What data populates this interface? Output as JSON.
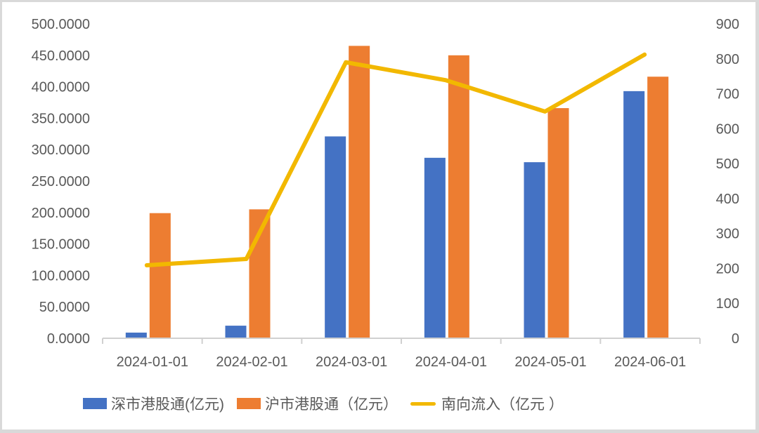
{
  "chart_data": {
    "type": "bar",
    "title": "",
    "categories": [
      "2024-01-01",
      "2024-02-01",
      "2024-03-01",
      "2024-04-01",
      "2024-05-01",
      "2024-06-01"
    ],
    "series": [
      {
        "name": "深市港股通(亿元)",
        "type": "bar",
        "axis": "left",
        "color": "#4472c4",
        "values": [
          9,
          20,
          321,
          287,
          280,
          393
        ]
      },
      {
        "name": "沪市港股通（亿元）",
        "type": "bar",
        "axis": "left",
        "color": "#ed7d31",
        "values": [
          199,
          205,
          465,
          450,
          366,
          416
        ]
      },
      {
        "name": "南向流入（亿元 ）",
        "type": "line",
        "axis": "right",
        "color": "#f2b800",
        "values": [
          209,
          227,
          790,
          739,
          649,
          812
        ]
      }
    ],
    "left_axis": {
      "ticks": [
        "0.0000",
        "50.0000",
        "100.0000",
        "150.0000",
        "200.0000",
        "250.0000",
        "300.0000",
        "350.0000",
        "400.0000",
        "450.0000",
        "500.0000"
      ],
      "ylim": [
        0,
        500
      ]
    },
    "right_axis": {
      "ticks": [
        "0",
        "100",
        "200",
        "300",
        "400",
        "500",
        "600",
        "700",
        "800",
        "900"
      ],
      "ylim": [
        0,
        900
      ]
    },
    "xlabel": "",
    "ylabel": "",
    "grid": false,
    "legend_position": "bottom"
  },
  "legend": {
    "items": [
      {
        "label": "深市港股通(亿元)",
        "color": "#4472c4",
        "kind": "bar"
      },
      {
        "label": "沪市港股通（亿元）",
        "color": "#ed7d31",
        "kind": "bar"
      },
      {
        "label": "南向流入（亿元 ）",
        "color": "#f2b800",
        "kind": "line"
      }
    ]
  }
}
